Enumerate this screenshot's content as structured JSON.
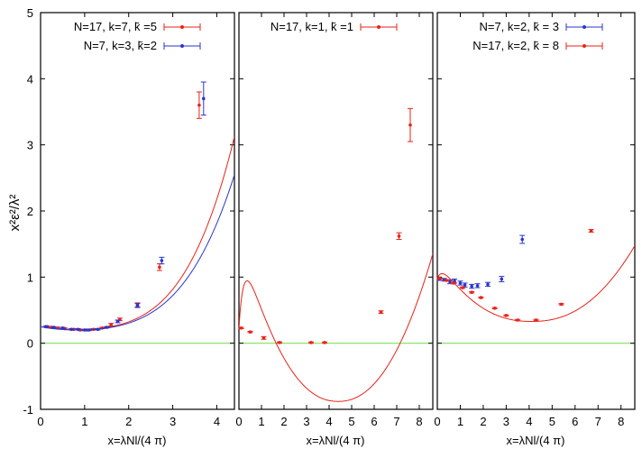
{
  "ylabel": "x²ε²/λ²",
  "colors": {
    "red": "#e8221a",
    "blue": "#2a36c9",
    "zero_line": "#7fe05a"
  },
  "panels": [
    {
      "xlabel": "x=λNl/(4 π)",
      "legend": [
        {
          "label": "N=17, k=7, k̄ =5",
          "color": "#e8221a",
          "marker": "circle"
        },
        {
          "label": "N=7, k=3, k̄=2",
          "color": "#2a36c9",
          "marker": "square"
        }
      ]
    },
    {
      "xlabel": "x=λNl/(4 π)",
      "legend": [
        {
          "label": "N=17, k=1, k̄ =1",
          "color": "#e8221a",
          "marker": "dot"
        }
      ]
    },
    {
      "xlabel": "x=λNl/(4 π)",
      "legend": [
        {
          "label": "N=7, k=2, k̄ = 3",
          "color": "#2a36c9",
          "marker": "cross"
        },
        {
          "label": "N=17, k=2, k̄ = 8",
          "color": "#e8221a",
          "marker": "dash"
        }
      ]
    }
  ],
  "chart_data": [
    {
      "type": "scatter",
      "xlim": [
        0,
        4.4
      ],
      "ylim": [
        -1,
        5
      ],
      "xticks": [
        0,
        1,
        2,
        3,
        4
      ],
      "yticks": [
        -1,
        0,
        1,
        2,
        3,
        4,
        5
      ],
      "zero_line": 0,
      "series": [
        {
          "name": "N=17, k=7, k̄ =5",
          "color": "#e8221a",
          "x": [
            0.15,
            0.25,
            0.4,
            0.55,
            0.75,
            0.9,
            1.05,
            1.2,
            1.4,
            1.6,
            1.8,
            2.2,
            2.7,
            3.6
          ],
          "y": [
            0.25,
            0.24,
            0.23,
            0.22,
            0.21,
            0.2,
            0.2,
            0.21,
            0.23,
            0.28,
            0.36,
            0.58,
            1.15,
            3.6
          ],
          "err": [
            0.01,
            0.01,
            0.01,
            0.01,
            0.01,
            0.01,
            0.01,
            0.01,
            0.01,
            0.02,
            0.02,
            0.03,
            0.05,
            0.2
          ],
          "fit": {
            "c0": 0.25,
            "a": 0.07,
            "b": 1.1,
            "n": 4.15
          }
        },
        {
          "name": "N=7, k=3, k̄=2",
          "color": "#2a36c9",
          "x": [
            0.12,
            0.3,
            0.5,
            0.7,
            0.85,
            1.0,
            1.1,
            1.3,
            1.5,
            1.75,
            2.2,
            2.75,
            3.7
          ],
          "y": [
            0.25,
            0.24,
            0.23,
            0.21,
            0.21,
            0.2,
            0.2,
            0.21,
            0.24,
            0.33,
            0.57,
            1.25,
            3.7
          ],
          "err": [
            0.01,
            0.01,
            0.01,
            0.01,
            0.01,
            0.01,
            0.01,
            0.01,
            0.01,
            0.02,
            0.03,
            0.05,
            0.25
          ],
          "fit": {
            "c0": 0.25,
            "a": 0.085,
            "b": 1.1,
            "n": 4.0
          }
        }
      ]
    },
    {
      "type": "scatter",
      "xlim": [
        0,
        8.6
      ],
      "ylim": [
        -1,
        5
      ],
      "xticks": [
        0,
        1,
        2,
        3,
        4,
        5,
        6,
        7,
        8
      ],
      "yticks": [
        -1,
        0,
        1,
        2,
        3,
        4,
        5
      ],
      "zero_line": 0,
      "series": [
        {
          "name": "N=17, k=1, k̄ =1",
          "color": "#e8221a",
          "x": [
            0.1,
            0.5,
            1.1,
            1.8,
            3.2,
            3.8,
            6.3,
            7.1,
            7.6
          ],
          "y": [
            0.23,
            0.17,
            0.08,
            0.01,
            0.01,
            0.01,
            0.47,
            1.62,
            3.3
          ],
          "err": [
            0.01,
            0.01,
            0.02,
            0.01,
            0.01,
            0.01,
            0.02,
            0.05,
            0.25
          ],
          "fit": {
            "c0": 0.23,
            "x0": 4.4,
            "ymin": -0.88,
            "h": 0.095,
            "n": 2.2
          }
        }
      ]
    },
    {
      "type": "scatter",
      "xlim": [
        0,
        8.6
      ],
      "ylim": [
        -1,
        5
      ],
      "xticks": [
        0,
        1,
        2,
        3,
        4,
        5,
        6,
        7,
        8
      ],
      "yticks": [
        -1,
        0,
        1,
        2,
        3,
        4,
        5
      ],
      "zero_line": 0,
      "series": [
        {
          "name": "N=7, k=2, k̄ = 3",
          "color": "#2a36c9",
          "x": [
            0.1,
            0.3,
            0.55,
            0.75,
            1.0,
            1.2,
            1.5,
            1.75,
            2.2,
            2.8,
            3.7
          ],
          "y": [
            0.97,
            0.96,
            0.93,
            0.94,
            0.91,
            0.88,
            0.86,
            0.87,
            0.89,
            0.97,
            1.57
          ],
          "err": [
            0.02,
            0.02,
            0.03,
            0.03,
            0.03,
            0.03,
            0.03,
            0.03,
            0.03,
            0.04,
            0.06
          ]
        },
        {
          "name": "N=17, k=2, k̄ = 8",
          "color": "#e8221a",
          "x": [
            0.1,
            0.4,
            0.7,
            1.1,
            1.5,
            1.9,
            2.5,
            3.0,
            3.5,
            4.3,
            5.4,
            6.7
          ],
          "y": [
            0.98,
            0.95,
            0.91,
            0.84,
            0.77,
            0.69,
            0.53,
            0.42,
            0.35,
            0.35,
            0.59,
            1.7
          ],
          "err": [
            0.01,
            0.01,
            0.01,
            0.01,
            0.01,
            0.01,
            0.01,
            0.01,
            0.01,
            0.01,
            0.01,
            0.02
          ],
          "fit": {
            "c0": 0.98,
            "x0": 4.1,
            "ymin": 0.33,
            "h": 0.036,
            "n": 2.3
          }
        }
      ]
    }
  ]
}
